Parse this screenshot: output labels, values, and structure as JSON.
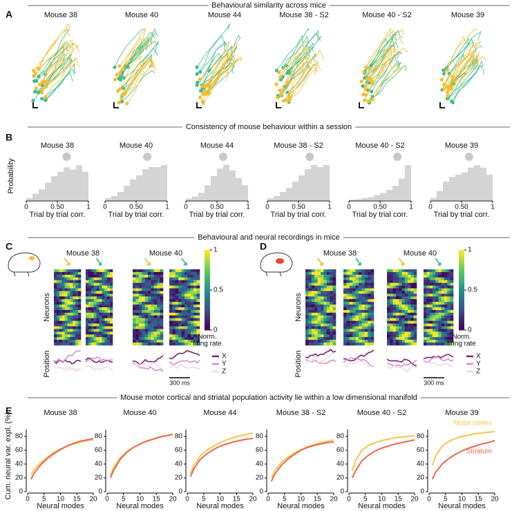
{
  "figure": {
    "panel_labels": [
      "A",
      "B",
      "C",
      "D",
      "E"
    ],
    "headers": [
      "Behavioural similarity across mice",
      "Consistency of mouse behaviour within a session",
      "Behavioural and neural recordings in mice",
      "Mouse motor cortical and striatal population activity lie within a low dimensional manifold"
    ],
    "panel_a_titles": [
      "Mouse 38",
      "Mouse 40",
      "Mouse 44",
      "Mouse 38 - S2",
      "Mouse 40 - S2",
      "Mouse 39"
    ],
    "trajectory_colors": [
      "#f5bd2e",
      "#3dbd8d"
    ]
  },
  "recordings": {
    "mouse_titles": [
      "Mouse 38",
      "Mouse 40"
    ],
    "neurons_label": "Neurons",
    "position_label": "Position",
    "colorbar_label": [
      "Norm.",
      "firing rate"
    ],
    "colorbar_ticks": [
      0,
      0.5,
      1
    ],
    "position_legend": [
      {
        "name": "X",
        "color": "#7a1f6e"
      },
      {
        "name": "Y",
        "color": "#d58fc6"
      },
      {
        "name": "Z",
        "color": "#eed6ec"
      }
    ],
    "scale_bar": "300 ms"
  },
  "chart_data": [
    {
      "type": "histogram",
      "title": "Mouse 38",
      "ylabel": "Probability",
      "xlabel": "Trial by trial corr.",
      "bins": [
        0,
        0.1,
        0.2,
        0.3,
        0.4,
        0.5,
        0.6,
        0.7,
        0.8,
        0.9,
        1
      ],
      "values": [
        0.01,
        0.03,
        0.05,
        0.08,
        0.11,
        0.13,
        0.15,
        0.14,
        0.16,
        0.13
      ],
      "mean": 0.65,
      "color": "#d4d4d4",
      "xlim": [
        0,
        1
      ],
      "ylim": [
        0,
        0.17
      ],
      "xticks": [
        0,
        {
          "value": 0.5,
          "label": "0.50"
        },
        1
      ]
    },
    {
      "type": "histogram",
      "title": "Mouse 40",
      "xlabel": "Trial by trial corr.",
      "bins": [
        0,
        0.1,
        0.2,
        0.3,
        0.4,
        0.5,
        0.6,
        0.7,
        0.8,
        0.9,
        1
      ],
      "values": [
        0.01,
        0.02,
        0.04,
        0.07,
        0.1,
        0.12,
        0.15,
        0.16,
        0.16,
        0.17
      ],
      "mean": 0.68,
      "color": "#d4d4d4",
      "xlim": [
        0,
        1
      ],
      "ylim": [
        0,
        0.18
      ],
      "xticks": [
        0,
        {
          "value": 0.5,
          "label": "0.50"
        },
        1
      ]
    },
    {
      "type": "histogram",
      "title": "Mouse 44",
      "xlabel": "Trial by trial corr.",
      "bins": [
        0,
        0.1,
        0.2,
        0.3,
        0.4,
        0.5,
        0.6,
        0.7,
        0.8,
        0.9,
        1
      ],
      "values": [
        0.01,
        0.02,
        0.04,
        0.08,
        0.13,
        0.17,
        0.19,
        0.16,
        0.12,
        0.08
      ],
      "mean": 0.6,
      "color": "#d4d4d4",
      "xlim": [
        0,
        1
      ],
      "ylim": [
        0,
        0.2
      ],
      "xticks": [
        0,
        {
          "value": 0.5,
          "label": "0.50"
        },
        1
      ]
    },
    {
      "type": "histogram",
      "title": "Mouse 38 - S2",
      "xlabel": "Trial by trial corr.",
      "bins": [
        0,
        0.1,
        0.2,
        0.3,
        0.4,
        0.5,
        0.6,
        0.7,
        0.8,
        0.9,
        1
      ],
      "values": [
        0.01,
        0.02,
        0.04,
        0.06,
        0.09,
        0.12,
        0.15,
        0.17,
        0.16,
        0.17
      ],
      "mean": 0.68,
      "color": "#d4d4d4",
      "xlim": [
        0,
        1
      ],
      "ylim": [
        0,
        0.18
      ],
      "xticks": [
        0,
        {
          "value": 0.5,
          "label": "0.50"
        },
        1
      ]
    },
    {
      "type": "histogram",
      "title": "Mouse 40 - S2",
      "xlabel": "Trial by trial corr.",
      "bins": [
        0,
        0.1,
        0.2,
        0.3,
        0.4,
        0.5,
        0.6,
        0.7,
        0.8,
        0.9,
        1
      ],
      "values": [
        0.005,
        0.01,
        0.02,
        0.03,
        0.05,
        0.07,
        0.1,
        0.14,
        0.21,
        0.34
      ],
      "mean": 0.78,
      "color": "#d4d4d4",
      "xlim": [
        0,
        1
      ],
      "ylim": [
        0,
        0.36
      ],
      "xticks": [
        0,
        {
          "value": 0.5,
          "label": "0.50"
        },
        1
      ]
    },
    {
      "type": "histogram",
      "title": "Mouse 39",
      "xlabel": "Trial by trial corr.",
      "bins": [
        0,
        0.1,
        0.2,
        0.3,
        0.4,
        0.5,
        0.6,
        0.7,
        0.8,
        0.9,
        1
      ],
      "values": [
        0.01,
        0.04,
        0.08,
        0.1,
        0.11,
        0.12,
        0.14,
        0.15,
        0.14,
        0.11
      ],
      "mean": 0.62,
      "color": "#d4d4d4",
      "xlim": [
        0,
        1
      ],
      "ylim": [
        0,
        0.16
      ],
      "xticks": [
        0,
        {
          "value": 0.5,
          "label": "0.50"
        },
        1
      ]
    },
    {
      "type": "line",
      "title": "Mouse 38",
      "ylabel": "Cum. neural var. expl. (%)",
      "xlabel": "Neural modes",
      "x": [
        1,
        2,
        4,
        6,
        8,
        10,
        12,
        14,
        16,
        18,
        20
      ],
      "xlim": [
        0,
        20
      ],
      "ylim": [
        0,
        90
      ],
      "xticks": [
        0,
        5,
        10,
        15,
        20
      ],
      "yticks": [
        0,
        20,
        40,
        60,
        80
      ],
      "series": [
        {
          "color": "#f7c548",
          "values": [
            25,
            32,
            42,
            50,
            57,
            62,
            66,
            69,
            72,
            74,
            75
          ]
        },
        {
          "color": "#e8674f",
          "values": [
            18,
            27,
            39,
            48,
            55,
            61,
            66,
            70,
            73,
            75,
            77
          ]
        }
      ]
    },
    {
      "type": "line",
      "title": "Mouse 40",
      "xlabel": "Neural modes",
      "x": [
        1,
        2,
        4,
        6,
        8,
        10,
        12,
        14,
        16,
        18,
        20
      ],
      "xlim": [
        0,
        20
      ],
      "ylim": [
        0,
        90
      ],
      "xticks": [
        0,
        5,
        10,
        15,
        20
      ],
      "yticks": [
        0,
        20,
        40,
        60,
        80
      ],
      "series": [
        {
          "color": "#f7c548",
          "values": [
            24,
            35,
            49,
            58,
            64,
            69,
            73,
            76,
            79,
            81,
            83
          ]
        },
        {
          "color": "#e8674f",
          "values": [
            20,
            31,
            47,
            57,
            64,
            69,
            73,
            76,
            79,
            81,
            83
          ]
        }
      ]
    },
    {
      "type": "line",
      "title": "Mouse 44",
      "xlabel": "Neural modes",
      "x": [
        1,
        2,
        4,
        6,
        8,
        10,
        12,
        14,
        16,
        18,
        20
      ],
      "xlim": [
        0,
        20
      ],
      "ylim": [
        0,
        90
      ],
      "xticks": [
        0,
        5,
        10,
        15,
        20
      ],
      "yticks": [
        0,
        20,
        40,
        60,
        80
      ],
      "series": [
        {
          "color": "#f7c548",
          "values": [
            26,
            38,
            52,
            60,
            66,
            71,
            75,
            78,
            81,
            83,
            85
          ]
        },
        {
          "color": "#e8674f",
          "values": [
            22,
            33,
            47,
            55,
            61,
            66,
            69,
            72,
            74,
            76,
            77
          ]
        }
      ]
    },
    {
      "type": "line",
      "title": "Mouse 38 - S2",
      "xlabel": "Neural modes",
      "x": [
        1,
        2,
        4,
        6,
        8,
        10,
        12,
        14,
        16,
        18,
        20
      ],
      "xlim": [
        0,
        20
      ],
      "ylim": [
        0,
        90
      ],
      "xticks": [
        0,
        5,
        10,
        15,
        20
      ],
      "yticks": [
        0,
        20,
        40,
        60,
        80
      ],
      "series": [
        {
          "color": "#f7c548",
          "values": [
            20,
            30,
            42,
            50,
            56,
            61,
            65,
            68,
            71,
            73,
            75
          ]
        },
        {
          "color": "#e8674f",
          "values": [
            15,
            25,
            38,
            47,
            54,
            60,
            64,
            67,
            69,
            71,
            72
          ]
        }
      ]
    },
    {
      "type": "line",
      "title": "Mouse 40 - S2",
      "xlabel": "Neural modes",
      "x": [
        1,
        2,
        4,
        6,
        8,
        10,
        12,
        14,
        16,
        18,
        20
      ],
      "xlim": [
        0,
        20
      ],
      "ylim": [
        0,
        90
      ],
      "xticks": [
        0,
        5,
        10,
        15,
        20
      ],
      "yticks": [
        0,
        20,
        40,
        60,
        80
      ],
      "series": [
        {
          "color": "#f7c548",
          "values": [
            30,
            45,
            60,
            67,
            71,
            74,
            76,
            78,
            79,
            80,
            81
          ]
        },
        {
          "color": "#e8674f",
          "values": [
            20,
            30,
            45,
            53,
            59,
            63,
            66,
            69,
            71,
            73,
            75
          ]
        }
      ]
    },
    {
      "type": "line",
      "title": "Mouse 39",
      "xlabel": "Neural modes",
      "x": [
        1,
        2,
        4,
        6,
        8,
        10,
        12,
        14,
        16,
        18,
        20
      ],
      "xlim": [
        0,
        20
      ],
      "ylim": [
        0,
        90
      ],
      "xticks": [
        0,
        5,
        10,
        15,
        20
      ],
      "yticks": [
        0,
        20,
        40,
        60,
        80
      ],
      "series": [
        {
          "name": "Motor cortex",
          "color": "#f7c548",
          "values": [
            38,
            52,
            66,
            73,
            77,
            80,
            82,
            84,
            85,
            86,
            87
          ]
        },
        {
          "name": "Striatum",
          "color": "#e8674f",
          "values": [
            18,
            28,
            40,
            48,
            54,
            59,
            63,
            66,
            69,
            71,
            74
          ]
        }
      ]
    }
  ]
}
